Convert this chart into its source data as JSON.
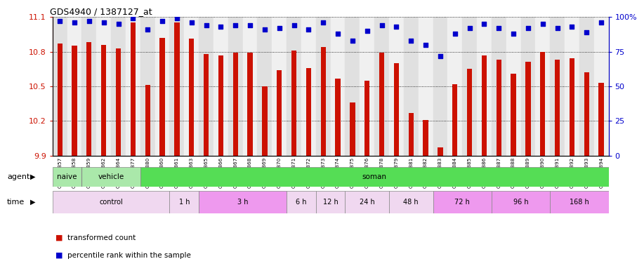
{
  "title": "GDS4940 / 1387127_at",
  "samples": [
    "GSM338857",
    "GSM338858",
    "GSM338859",
    "GSM338862",
    "GSM338864",
    "GSM338877",
    "GSM338880",
    "GSM338860",
    "GSM338861",
    "GSM338863",
    "GSM338865",
    "GSM338866",
    "GSM338867",
    "GSM338868",
    "GSM338869",
    "GSM338870",
    "GSM338871",
    "GSM338872",
    "GSM338873",
    "GSM338874",
    "GSM338875",
    "GSM338876",
    "GSM338878",
    "GSM338879",
    "GSM338881",
    "GSM338882",
    "GSM338883",
    "GSM338884",
    "GSM338885",
    "GSM338886",
    "GSM338887",
    "GSM338888",
    "GSM338889",
    "GSM338890",
    "GSM338891",
    "GSM338892",
    "GSM338893",
    "GSM338894"
  ],
  "red_values": [
    10.87,
    10.85,
    10.88,
    10.86,
    10.83,
    11.05,
    10.51,
    10.92,
    11.05,
    10.91,
    10.78,
    10.77,
    10.79,
    10.79,
    10.5,
    10.64,
    10.81,
    10.66,
    10.84,
    10.57,
    10.36,
    10.55,
    10.79,
    10.7,
    10.27,
    10.21,
    9.97,
    10.52,
    10.65,
    10.77,
    10.73,
    10.61,
    10.71,
    10.8,
    10.73,
    10.74,
    10.62,
    10.53
  ],
  "blue_values": [
    97,
    96,
    97,
    96,
    95,
    99,
    91,
    97,
    99,
    96,
    94,
    93,
    94,
    94,
    91,
    92,
    94,
    91,
    96,
    88,
    83,
    90,
    94,
    93,
    83,
    80,
    72,
    88,
    92,
    95,
    92,
    88,
    92,
    95,
    92,
    93,
    89,
    96
  ],
  "ymin": 9.9,
  "ymax": 11.1,
  "yticks": [
    9.9,
    10.2,
    10.5,
    10.8,
    11.1
  ],
  "ytick_labels": [
    "9.9",
    "10.2",
    "10.5",
    "10.8",
    "11.1"
  ],
  "right_yticks": [
    0,
    25,
    50,
    75,
    100
  ],
  "right_ytick_labels": [
    "0",
    "25",
    "50",
    "75",
    "100%"
  ],
  "bar_color": "#cc1100",
  "dot_color": "#0000cc",
  "agent_configs": [
    {
      "label": "naive",
      "start": 0,
      "end": 2,
      "color": "#aae8aa"
    },
    {
      "label": "vehicle",
      "start": 2,
      "end": 6,
      "color": "#aae8aa"
    },
    {
      "label": "soman",
      "start": 6,
      "end": 38,
      "color": "#55dd55"
    }
  ],
  "time_configs": [
    {
      "label": "control",
      "start": 0,
      "end": 8,
      "color": "#f0d8f0"
    },
    {
      "label": "1 h",
      "start": 8,
      "end": 10,
      "color": "#f0d8f0"
    },
    {
      "label": "3 h",
      "start": 10,
      "end": 16,
      "color": "#ee99ee"
    },
    {
      "label": "6 h",
      "start": 16,
      "end": 18,
      "color": "#f0d8f0"
    },
    {
      "label": "12 h",
      "start": 18,
      "end": 20,
      "color": "#f0d8f0"
    },
    {
      "label": "24 h",
      "start": 20,
      "end": 23,
      "color": "#f0d8f0"
    },
    {
      "label": "48 h",
      "start": 23,
      "end": 26,
      "color": "#f0d8f0"
    },
    {
      "label": "72 h",
      "start": 26,
      "end": 30,
      "color": "#ee99ee"
    },
    {
      "label": "96 h",
      "start": 30,
      "end": 34,
      "color": "#ee99ee"
    },
    {
      "label": "168 h",
      "start": 34,
      "end": 38,
      "color": "#ee99ee"
    }
  ],
  "xticklabel_bg_colors": [
    "#e0e0e0",
    "#f0f0f0"
  ]
}
